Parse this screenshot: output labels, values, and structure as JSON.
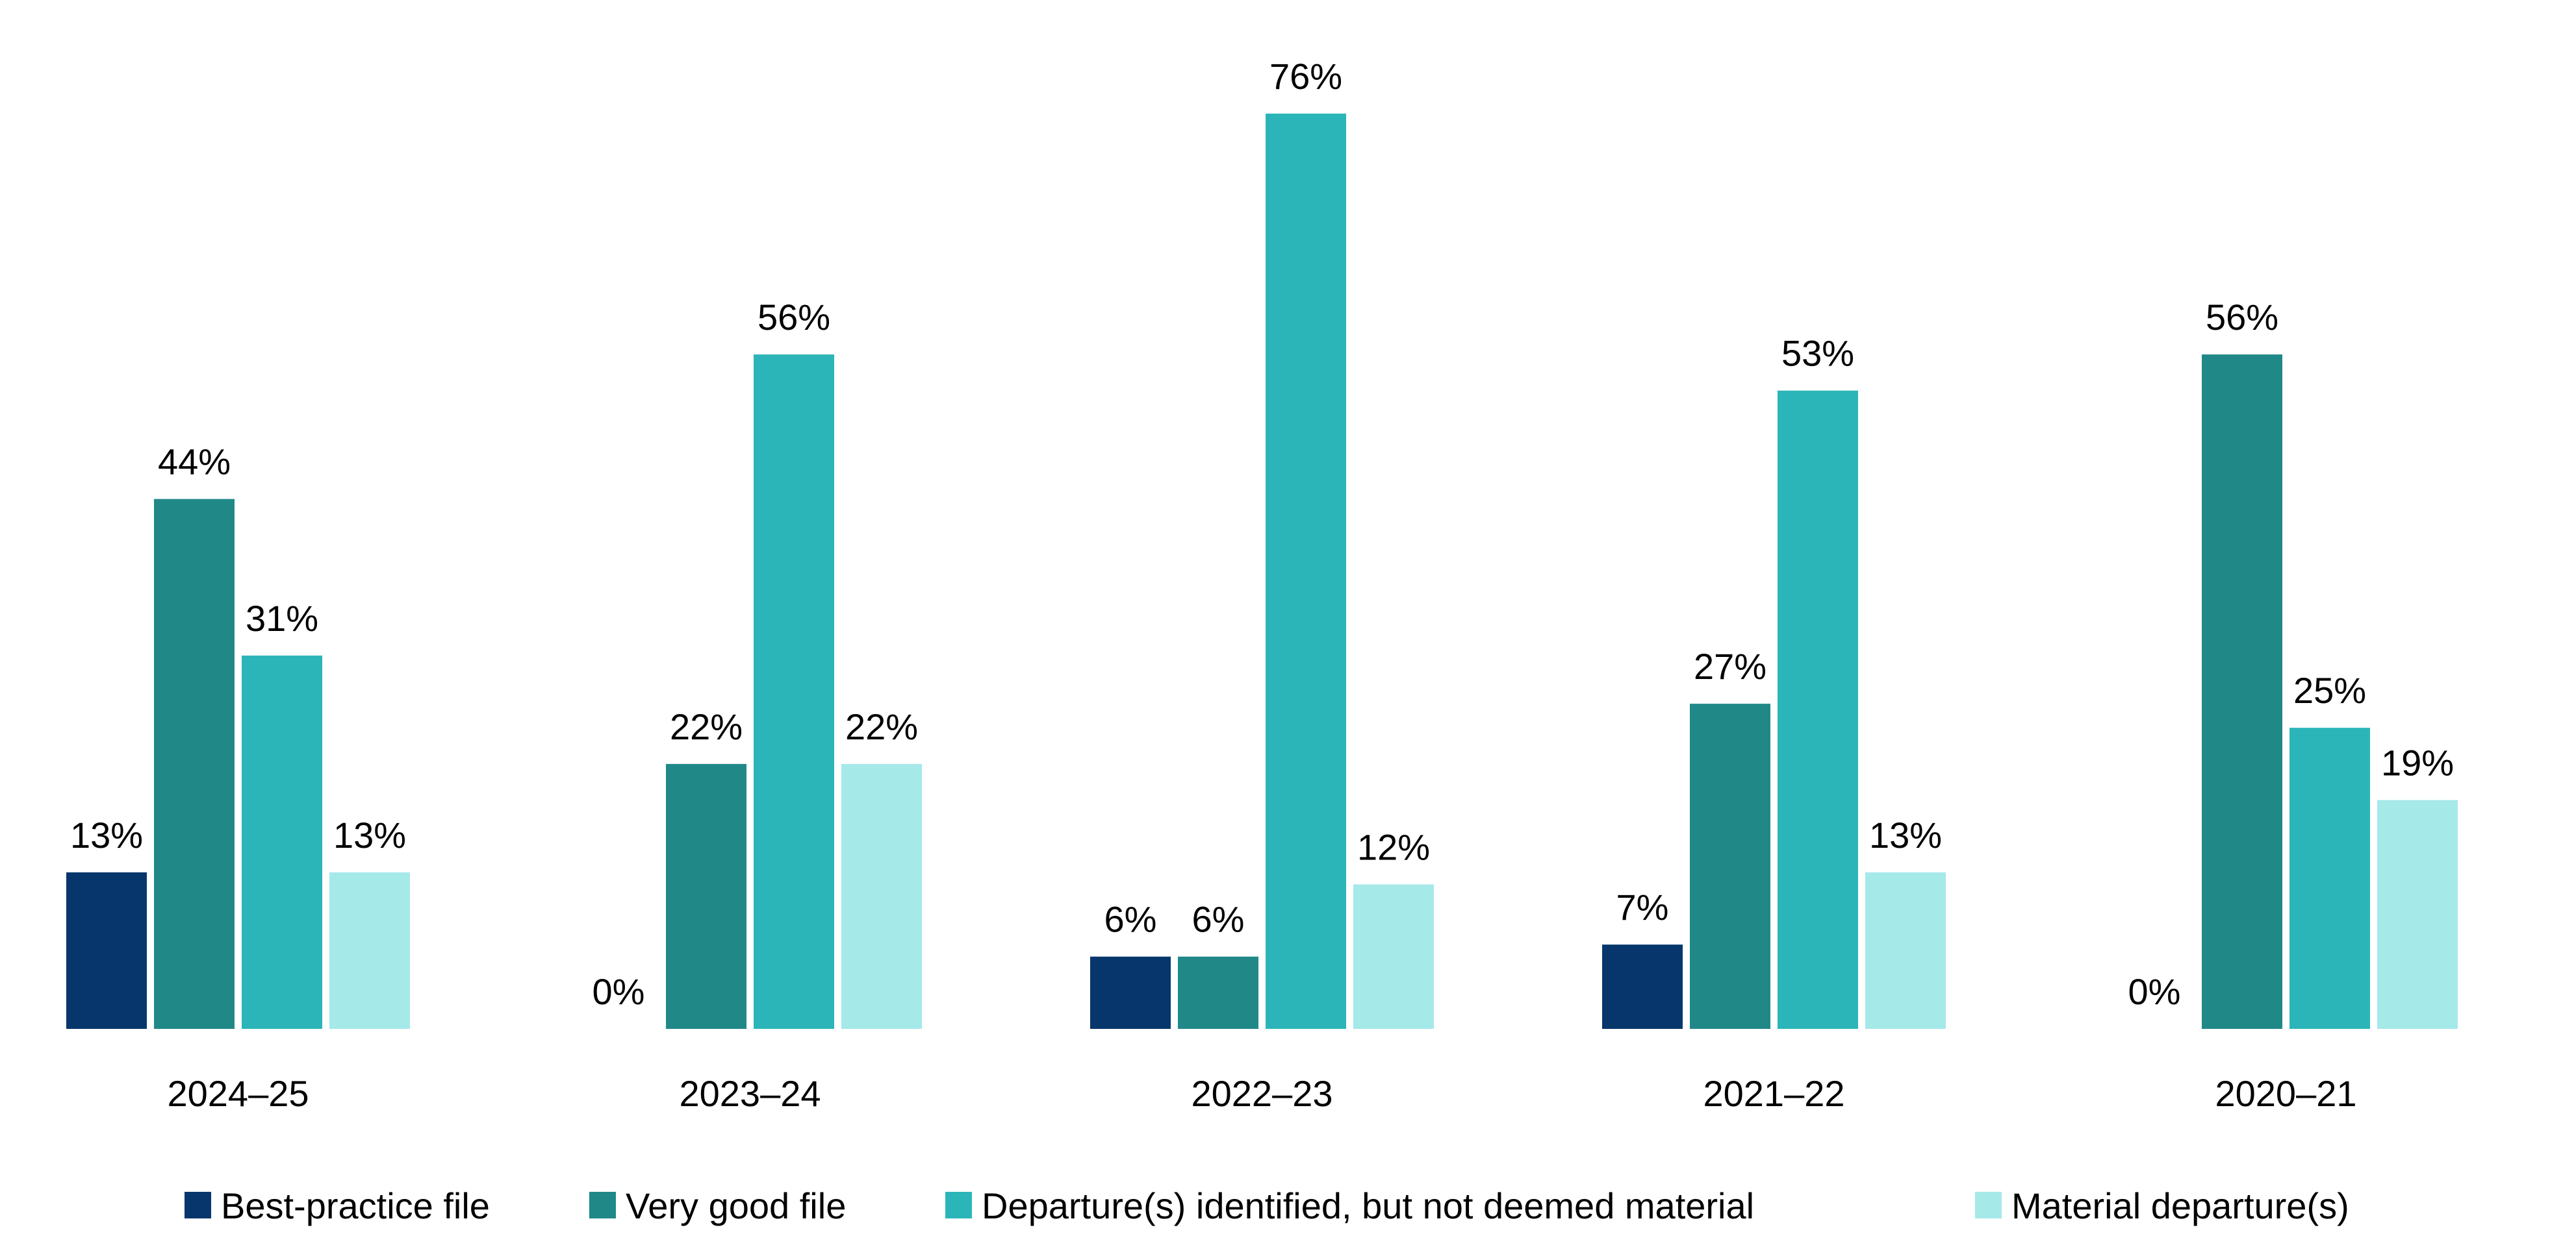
{
  "chart_data": {
    "type": "bar",
    "title": "",
    "xlabel": "",
    "ylabel": "",
    "ylim": [
      0,
      76
    ],
    "grid": false,
    "legend_position": "bottom",
    "categories": [
      "2024–25",
      "2023–24",
      "2022–23",
      "2021–22",
      "2020–21"
    ],
    "series": [
      {
        "name": "Best-practice file",
        "color": "#06366b",
        "values": [
          13,
          0,
          6,
          7,
          0
        ],
        "labels": [
          "13%",
          "0%",
          "6%",
          "7%",
          "0%"
        ]
      },
      {
        "name": "Very good file",
        "color": "#218888",
        "values": [
          44,
          22,
          6,
          27,
          56
        ],
        "labels": [
          "44%",
          "22%",
          "6%",
          "27%",
          "56%"
        ]
      },
      {
        "name": "Departure(s) identified, but not deemed material",
        "color": "#2cb5b8",
        "values": [
          31,
          56,
          76,
          53,
          25
        ],
        "labels": [
          "31%",
          "56%",
          "76%",
          "53%",
          "25%"
        ]
      },
      {
        "name": "Material departure(s)",
        "color": "#a6e9e9",
        "values": [
          13,
          22,
          12,
          13,
          19
        ],
        "labels": [
          "13%",
          "22%",
          "12%",
          "13%",
          "19%"
        ]
      }
    ]
  }
}
